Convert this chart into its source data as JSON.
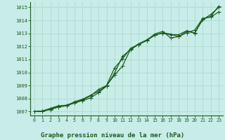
{
  "title": "Graphe pression niveau de la mer (hPa)",
  "bg_color": "#c8ece8",
  "grid_color_major": "#b0d8d4",
  "grid_color_minor": "#d0ecec",
  "line_color": "#1a5c1a",
  "xlim": [
    -0.5,
    23.5
  ],
  "ylim": [
    1006.7,
    1015.4
  ],
  "yticks": [
    1007,
    1008,
    1009,
    1010,
    1011,
    1012,
    1013,
    1014,
    1015
  ],
  "xticks": [
    0,
    1,
    2,
    3,
    4,
    5,
    6,
    7,
    8,
    9,
    10,
    11,
    12,
    13,
    14,
    15,
    16,
    17,
    18,
    19,
    20,
    21,
    22,
    23
  ],
  "series1_x": [
    0,
    1,
    2,
    3,
    4,
    5,
    6,
    7,
    8,
    9,
    10,
    11,
    12,
    13,
    14,
    15,
    16,
    17,
    18,
    19,
    20,
    21,
    22,
    23
  ],
  "series1_y": [
    1007.0,
    1007.05,
    1007.15,
    1007.35,
    1007.45,
    1007.65,
    1007.85,
    1008.05,
    1008.45,
    1008.95,
    1009.95,
    1011.25,
    1011.75,
    1012.15,
    1012.45,
    1012.85,
    1013.05,
    1012.95,
    1012.75,
    1013.05,
    1013.25,
    1014.15,
    1014.25,
    1014.65
  ],
  "series2_x": [
    0,
    1,
    2,
    3,
    4,
    5,
    6,
    7,
    8,
    9,
    10,
    11,
    12,
    13,
    14,
    15,
    16,
    17,
    18,
    19,
    20,
    21,
    22,
    23
  ],
  "series2_y": [
    1007.0,
    1007.05,
    1007.25,
    1007.45,
    1007.45,
    1007.75,
    1007.95,
    1008.25,
    1008.55,
    1009.0,
    1010.35,
    1011.05,
    1011.85,
    1012.15,
    1012.45,
    1012.95,
    1013.15,
    1012.65,
    1012.75,
    1013.15,
    1013.05,
    1014.05,
    1014.45,
    1015.0
  ],
  "series3_x": [
    0,
    1,
    2,
    3,
    4,
    5,
    6,
    7,
    8,
    9,
    10,
    11,
    12,
    13,
    14,
    15,
    16,
    17,
    18,
    19,
    20,
    21,
    22,
    23
  ],
  "series3_y": [
    1007.0,
    1007.0,
    1007.2,
    1007.4,
    1007.5,
    1007.7,
    1007.9,
    1008.2,
    1008.7,
    1009.0,
    1009.8,
    1010.5,
    1011.8,
    1012.2,
    1012.5,
    1012.9,
    1013.0,
    1012.9,
    1012.9,
    1013.2,
    1013.0,
    1014.1,
    1014.3,
    1015.1
  ]
}
